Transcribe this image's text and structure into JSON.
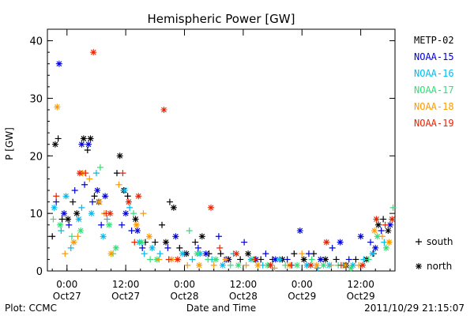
{
  "chart_data": {
    "type": "scatter",
    "title": "Hemispheric Power [GW]",
    "ylabel": "P [GW]",
    "xlabel": "Date and Time",
    "ylim": [
      0,
      42
    ],
    "yticks": [
      0,
      10,
      20,
      30,
      40
    ],
    "xlim_hours": [
      -4,
      67
    ],
    "xticks": [
      {
        "hour": 0,
        "line1": "0:00",
        "line2": "Oct27"
      },
      {
        "hour": 12,
        "line1": "12:00",
        "line2": "Oct27"
      },
      {
        "hour": 24,
        "line1": "0:00",
        "line2": "Oct28"
      },
      {
        "hour": 36,
        "line1": "12:00",
        "line2": "Oct28"
      },
      {
        "hour": 48,
        "line1": "0:00",
        "line2": "Oct29"
      },
      {
        "hour": 60,
        "line1": "12:00",
        "line2": "Oct29"
      }
    ],
    "series": [
      {
        "name": "METP-02",
        "color": "#000000"
      },
      {
        "name": "NOAA-15",
        "color": "#0000dd"
      },
      {
        "name": "NOAA-16",
        "color": "#00bbee"
      },
      {
        "name": "NOAA-17",
        "color": "#33dd77"
      },
      {
        "name": "NOAA-18",
        "color": "#ff9900"
      },
      {
        "name": "NOAA-19",
        "color": "#ee2200"
      }
    ],
    "marker_legend": [
      {
        "symbol": "plus",
        "label": "south"
      },
      {
        "symbol": "star",
        "label": "north"
      }
    ],
    "points": [
      {
        "s": 0,
        "m": "plus",
        "x": -3.0,
        "y": 6
      },
      {
        "s": 0,
        "m": "star",
        "x": -2.4,
        "y": 22
      },
      {
        "s": 0,
        "m": "plus",
        "x": -1.8,
        "y": 23
      },
      {
        "s": 0,
        "m": "plus",
        "x": -1.0,
        "y": 9
      },
      {
        "s": 0,
        "m": "star",
        "x": 0.2,
        "y": 9
      },
      {
        "s": 0,
        "m": "plus",
        "x": 1.2,
        "y": 12
      },
      {
        "s": 0,
        "m": "star",
        "x": 2.0,
        "y": 10
      },
      {
        "s": 0,
        "m": "star",
        "x": 3.4,
        "y": 23
      },
      {
        "s": 0,
        "m": "plus",
        "x": 4.2,
        "y": 21
      },
      {
        "s": 0,
        "m": "star",
        "x": 4.8,
        "y": 23
      },
      {
        "s": 0,
        "m": "plus",
        "x": 5.6,
        "y": 13
      },
      {
        "s": 0,
        "m": "star",
        "x": 6.5,
        "y": 12
      },
      {
        "s": 0,
        "m": "star",
        "x": 10.8,
        "y": 20
      },
      {
        "s": 0,
        "m": "plus",
        "x": 10.2,
        "y": 17
      },
      {
        "s": 0,
        "m": "star",
        "x": 11.6,
        "y": 14
      },
      {
        "s": 0,
        "m": "plus",
        "x": 12.4,
        "y": 13
      },
      {
        "s": 0,
        "m": "star",
        "x": 14.0,
        "y": 9
      },
      {
        "s": 0,
        "m": "plus",
        "x": 16.0,
        "y": 5
      },
      {
        "s": 0,
        "m": "plus",
        "x": 18.0,
        "y": 5
      },
      {
        "s": 0,
        "m": "plus",
        "x": 19.4,
        "y": 8
      },
      {
        "s": 0,
        "m": "star",
        "x": 20.2,
        "y": 5
      },
      {
        "s": 0,
        "m": "plus",
        "x": 21.0,
        "y": 12
      },
      {
        "s": 0,
        "m": "star",
        "x": 21.8,
        "y": 11
      },
      {
        "s": 0,
        "m": "plus",
        "x": 23.0,
        "y": 4
      },
      {
        "s": 0,
        "m": "star",
        "x": 24.4,
        "y": 3
      },
      {
        "s": 0,
        "m": "plus",
        "x": 26.2,
        "y": 5
      },
      {
        "s": 0,
        "m": "star",
        "x": 27.6,
        "y": 6
      },
      {
        "s": 0,
        "m": "plus",
        "x": 29.0,
        "y": 3
      },
      {
        "s": 0,
        "m": "plus",
        "x": 31.4,
        "y": 3
      },
      {
        "s": 0,
        "m": "star",
        "x": 33.0,
        "y": 2
      },
      {
        "s": 0,
        "m": "plus",
        "x": 35.4,
        "y": 2
      },
      {
        "s": 0,
        "m": "star",
        "x": 37.0,
        "y": 3
      },
      {
        "s": 0,
        "m": "plus",
        "x": 39.6,
        "y": 2
      },
      {
        "s": 0,
        "m": "plus",
        "x": 42.0,
        "y": 2
      },
      {
        "s": 0,
        "m": "star",
        "x": 44.0,
        "y": 2
      },
      {
        "s": 0,
        "m": "plus",
        "x": 46.4,
        "y": 3
      },
      {
        "s": 0,
        "m": "star",
        "x": 48.4,
        "y": 2
      },
      {
        "s": 0,
        "m": "plus",
        "x": 50.4,
        "y": 3
      },
      {
        "s": 0,
        "m": "star",
        "x": 52.8,
        "y": 2
      },
      {
        "s": 0,
        "m": "plus",
        "x": 55.0,
        "y": 2
      },
      {
        "s": 0,
        "m": "star",
        "x": 57.0,
        "y": 1
      },
      {
        "s": 0,
        "m": "plus",
        "x": 59.0,
        "y": 2
      },
      {
        "s": 0,
        "m": "star",
        "x": 61.2,
        "y": 2
      },
      {
        "s": 0,
        "m": "plus",
        "x": 62.6,
        "y": 3
      },
      {
        "s": 0,
        "m": "star",
        "x": 63.6,
        "y": 8
      },
      {
        "s": 0,
        "m": "plus",
        "x": 64.6,
        "y": 9
      },
      {
        "s": 0,
        "m": "star",
        "x": 65.6,
        "y": 7
      },
      {
        "s": 1,
        "m": "star",
        "x": -1.6,
        "y": 36
      },
      {
        "s": 1,
        "m": "plus",
        "x": -2.2,
        "y": 12
      },
      {
        "s": 1,
        "m": "star",
        "x": -0.6,
        "y": 10
      },
      {
        "s": 1,
        "m": "plus",
        "x": 0.4,
        "y": 8
      },
      {
        "s": 1,
        "m": "plus",
        "x": 1.6,
        "y": 14
      },
      {
        "s": 1,
        "m": "star",
        "x": 3.0,
        "y": 22
      },
      {
        "s": 1,
        "m": "plus",
        "x": 3.6,
        "y": 15
      },
      {
        "s": 1,
        "m": "star",
        "x": 4.4,
        "y": 22
      },
      {
        "s": 1,
        "m": "plus",
        "x": 5.2,
        "y": 12
      },
      {
        "s": 1,
        "m": "star",
        "x": 6.2,
        "y": 14
      },
      {
        "s": 1,
        "m": "plus",
        "x": 7.0,
        "y": 8
      },
      {
        "s": 1,
        "m": "star",
        "x": 7.8,
        "y": 13
      },
      {
        "s": 1,
        "m": "plus",
        "x": 11.2,
        "y": 8
      },
      {
        "s": 1,
        "m": "star",
        "x": 12.0,
        "y": 10
      },
      {
        "s": 1,
        "m": "plus",
        "x": 13.2,
        "y": 7
      },
      {
        "s": 1,
        "m": "star",
        "x": 14.4,
        "y": 7
      },
      {
        "s": 1,
        "m": "plus",
        "x": 15.4,
        "y": 4
      },
      {
        "s": 1,
        "m": "plus",
        "x": 20.6,
        "y": 4
      },
      {
        "s": 1,
        "m": "star",
        "x": 22.2,
        "y": 6
      },
      {
        "s": 1,
        "m": "plus",
        "x": 24.0,
        "y": 3
      },
      {
        "s": 1,
        "m": "plus",
        "x": 26.8,
        "y": 4
      },
      {
        "s": 1,
        "m": "star",
        "x": 28.4,
        "y": 3
      },
      {
        "s": 1,
        "m": "plus",
        "x": 31.0,
        "y": 6
      },
      {
        "s": 1,
        "m": "star",
        "x": 32.6,
        "y": 2
      },
      {
        "s": 1,
        "m": "plus",
        "x": 36.2,
        "y": 5
      },
      {
        "s": 1,
        "m": "star",
        "x": 38.6,
        "y": 2
      },
      {
        "s": 1,
        "m": "plus",
        "x": 40.6,
        "y": 3
      },
      {
        "s": 1,
        "m": "star",
        "x": 42.6,
        "y": 2
      },
      {
        "s": 1,
        "m": "plus",
        "x": 45.0,
        "y": 2
      },
      {
        "s": 1,
        "m": "star",
        "x": 47.6,
        "y": 7
      },
      {
        "s": 1,
        "m": "plus",
        "x": 49.4,
        "y": 3
      },
      {
        "s": 1,
        "m": "star",
        "x": 51.8,
        "y": 2
      },
      {
        "s": 1,
        "m": "plus",
        "x": 54.2,
        "y": 4
      },
      {
        "s": 1,
        "m": "star",
        "x": 55.8,
        "y": 5
      },
      {
        "s": 1,
        "m": "plus",
        "x": 57.6,
        "y": 2
      },
      {
        "s": 1,
        "m": "star",
        "x": 60.0,
        "y": 6
      },
      {
        "s": 1,
        "m": "plus",
        "x": 62.0,
        "y": 5
      },
      {
        "s": 1,
        "m": "star",
        "x": 63.0,
        "y": 4
      },
      {
        "s": 1,
        "m": "plus",
        "x": 64.2,
        "y": 7
      },
      {
        "s": 1,
        "m": "star",
        "x": 66.0,
        "y": 8
      },
      {
        "s": 2,
        "m": "star",
        "x": -2.6,
        "y": 11
      },
      {
        "s": 2,
        "m": "plus",
        "x": -1.2,
        "y": 7
      },
      {
        "s": 2,
        "m": "star",
        "x": -0.2,
        "y": 13
      },
      {
        "s": 2,
        "m": "plus",
        "x": 0.8,
        "y": 4
      },
      {
        "s": 2,
        "m": "star",
        "x": 2.4,
        "y": 9
      },
      {
        "s": 2,
        "m": "plus",
        "x": 3.0,
        "y": 11
      },
      {
        "s": 2,
        "m": "star",
        "x": 5.0,
        "y": 10
      },
      {
        "s": 2,
        "m": "plus",
        "x": 6.0,
        "y": 17
      },
      {
        "s": 2,
        "m": "star",
        "x": 7.4,
        "y": 6
      },
      {
        "s": 2,
        "m": "plus",
        "x": 8.2,
        "y": 9
      },
      {
        "s": 2,
        "m": "star",
        "x": 11.8,
        "y": 14
      },
      {
        "s": 2,
        "m": "plus",
        "x": 12.8,
        "y": 11
      },
      {
        "s": 2,
        "m": "star",
        "x": 14.8,
        "y": 5
      },
      {
        "s": 2,
        "m": "plus",
        "x": 15.8,
        "y": 3
      },
      {
        "s": 2,
        "m": "star",
        "x": 17.4,
        "y": 4
      },
      {
        "s": 2,
        "m": "plus",
        "x": 19.0,
        "y": 3
      },
      {
        "s": 2,
        "m": "star",
        "x": 23.6,
        "y": 3
      },
      {
        "s": 2,
        "m": "plus",
        "x": 25.6,
        "y": 2
      },
      {
        "s": 2,
        "m": "star",
        "x": 27.2,
        "y": 3
      },
      {
        "s": 2,
        "m": "plus",
        "x": 29.6,
        "y": 2
      },
      {
        "s": 2,
        "m": "star",
        "x": 31.8,
        "y": 1
      },
      {
        "s": 2,
        "m": "plus",
        "x": 34.0,
        "y": 3
      },
      {
        "s": 2,
        "m": "star",
        "x": 37.6,
        "y": 2
      },
      {
        "s": 2,
        "m": "plus",
        "x": 40.0,
        "y": 1
      },
      {
        "s": 2,
        "m": "star",
        "x": 43.4,
        "y": 2
      },
      {
        "s": 2,
        "m": "plus",
        "x": 46.0,
        "y": 1
      },
      {
        "s": 2,
        "m": "star",
        "x": 49.0,
        "y": 1
      },
      {
        "s": 2,
        "m": "plus",
        "x": 51.2,
        "y": 0.5
      },
      {
        "s": 2,
        "m": "star",
        "x": 53.6,
        "y": 1
      },
      {
        "s": 2,
        "m": "plus",
        "x": 56.4,
        "y": 1
      },
      {
        "s": 2,
        "m": "star",
        "x": 58.4,
        "y": 1
      },
      {
        "s": 2,
        "m": "plus",
        "x": 60.6,
        "y": 2
      },
      {
        "s": 2,
        "m": "star",
        "x": 62.4,
        "y": 3
      },
      {
        "s": 2,
        "m": "plus",
        "x": 64.8,
        "y": 5
      },
      {
        "s": 3,
        "m": "plus",
        "x": -2.8,
        "y": 9
      },
      {
        "s": 3,
        "m": "star",
        "x": -1.4,
        "y": 8
      },
      {
        "s": 3,
        "m": "plus",
        "x": 1.0,
        "y": 6
      },
      {
        "s": 3,
        "m": "star",
        "x": 2.8,
        "y": 7
      },
      {
        "s": 3,
        "m": "plus",
        "x": 6.8,
        "y": 18
      },
      {
        "s": 3,
        "m": "star",
        "x": 8.6,
        "y": 8
      },
      {
        "s": 3,
        "m": "plus",
        "x": 9.4,
        "y": 3
      },
      {
        "s": 3,
        "m": "star",
        "x": 10.0,
        "y": 4
      },
      {
        "s": 3,
        "m": "plus",
        "x": 13.6,
        "y": 10
      },
      {
        "s": 3,
        "m": "star",
        "x": 15.2,
        "y": 5
      },
      {
        "s": 3,
        "m": "plus",
        "x": 17.0,
        "y": 2
      },
      {
        "s": 3,
        "m": "star",
        "x": 18.4,
        "y": 2
      },
      {
        "s": 3,
        "m": "plus",
        "x": 25.0,
        "y": 7
      },
      {
        "s": 3,
        "m": "star",
        "x": 26.6,
        "y": 3
      },
      {
        "s": 3,
        "m": "plus",
        "x": 28.8,
        "y": 2
      },
      {
        "s": 3,
        "m": "star",
        "x": 30.4,
        "y": 2
      },
      {
        "s": 3,
        "m": "plus",
        "x": 33.4,
        "y": 1
      },
      {
        "s": 3,
        "m": "star",
        "x": 35.0,
        "y": 1
      },
      {
        "s": 3,
        "m": "plus",
        "x": 38.0,
        "y": 2
      },
      {
        "s": 3,
        "m": "star",
        "x": 41.0,
        "y": 1
      },
      {
        "s": 3,
        "m": "plus",
        "x": 44.6,
        "y": 1
      },
      {
        "s": 3,
        "m": "star",
        "x": 47.0,
        "y": 1
      },
      {
        "s": 3,
        "m": "plus",
        "x": 50.0,
        "y": 2
      },
      {
        "s": 3,
        "m": "star",
        "x": 52.4,
        "y": 1
      },
      {
        "s": 3,
        "m": "plus",
        "x": 55.4,
        "y": 1
      },
      {
        "s": 3,
        "m": "star",
        "x": 58.0,
        "y": 0.5
      },
      {
        "s": 3,
        "m": "plus",
        "x": 61.6,
        "y": 2
      },
      {
        "s": 3,
        "m": "star",
        "x": 63.4,
        "y": 6
      },
      {
        "s": 3,
        "m": "plus",
        "x": 66.6,
        "y": 11
      },
      {
        "s": 3,
        "m": "star",
        "x": 65.2,
        "y": 4
      },
      {
        "s": 4,
        "m": "star",
        "x": -2.0,
        "y": 28.5
      },
      {
        "s": 4,
        "m": "plus",
        "x": -0.4,
        "y": 3
      },
      {
        "s": 4,
        "m": "star",
        "x": 1.4,
        "y": 5
      },
      {
        "s": 4,
        "m": "plus",
        "x": 2.2,
        "y": 6
      },
      {
        "s": 4,
        "m": "star",
        "x": 3.2,
        "y": 17
      },
      {
        "s": 4,
        "m": "plus",
        "x": 4.6,
        "y": 16
      },
      {
        "s": 4,
        "m": "star",
        "x": 6.6,
        "y": 12
      },
      {
        "s": 4,
        "m": "plus",
        "x": 7.6,
        "y": 10
      },
      {
        "s": 4,
        "m": "star",
        "x": 9.0,
        "y": 3
      },
      {
        "s": 4,
        "m": "plus",
        "x": 10.6,
        "y": 15
      },
      {
        "s": 4,
        "m": "star",
        "x": 14.2,
        "y": 8
      },
      {
        "s": 4,
        "m": "plus",
        "x": 15.6,
        "y": 10
      },
      {
        "s": 4,
        "m": "star",
        "x": 16.8,
        "y": 6
      },
      {
        "s": 4,
        "m": "plus",
        "x": 18.8,
        "y": 2
      },
      {
        "s": 4,
        "m": "star",
        "x": 21.4,
        "y": 2
      },
      {
        "s": 4,
        "m": "plus",
        "x": 24.6,
        "y": 1
      },
      {
        "s": 4,
        "m": "star",
        "x": 27.0,
        "y": 1
      },
      {
        "s": 4,
        "m": "plus",
        "x": 30.0,
        "y": 1
      },
      {
        "s": 4,
        "m": "star",
        "x": 32.4,
        "y": 2
      },
      {
        "s": 4,
        "m": "plus",
        "x": 36.6,
        "y": 1
      },
      {
        "s": 4,
        "m": "star",
        "x": 39.0,
        "y": 1
      },
      {
        "s": 4,
        "m": "plus",
        "x": 42.4,
        "y": 0.5
      },
      {
        "s": 4,
        "m": "star",
        "x": 45.4,
        "y": 1
      },
      {
        "s": 4,
        "m": "plus",
        "x": 48.0,
        "y": 3
      },
      {
        "s": 4,
        "m": "star",
        "x": 51.0,
        "y": 1
      },
      {
        "s": 4,
        "m": "plus",
        "x": 54.0,
        "y": 1
      },
      {
        "s": 4,
        "m": "star",
        "x": 56.8,
        "y": 1
      },
      {
        "s": 4,
        "m": "plus",
        "x": 59.6,
        "y": 1
      },
      {
        "s": 4,
        "m": "star",
        "x": 62.8,
        "y": 7
      },
      {
        "s": 4,
        "m": "plus",
        "x": 64.4,
        "y": 6
      },
      {
        "s": 4,
        "m": "star",
        "x": 65.8,
        "y": 5
      },
      {
        "s": 5,
        "m": "plus",
        "x": -2.2,
        "y": 13
      },
      {
        "s": 5,
        "m": "star",
        "x": 2.6,
        "y": 17
      },
      {
        "s": 5,
        "m": "plus",
        "x": 3.8,
        "y": 17
      },
      {
        "s": 5,
        "m": "star",
        "x": 5.4,
        "y": 38
      },
      {
        "s": 5,
        "m": "plus",
        "x": 8.0,
        "y": 10
      },
      {
        "s": 5,
        "m": "star",
        "x": 8.8,
        "y": 10
      },
      {
        "s": 5,
        "m": "plus",
        "x": 11.4,
        "y": 17
      },
      {
        "s": 5,
        "m": "star",
        "x": 12.6,
        "y": 12
      },
      {
        "s": 5,
        "m": "plus",
        "x": 13.8,
        "y": 5
      },
      {
        "s": 5,
        "m": "star",
        "x": 14.6,
        "y": 13
      },
      {
        "s": 5,
        "m": "star",
        "x": 19.8,
        "y": 28
      },
      {
        "s": 5,
        "m": "plus",
        "x": 20.8,
        "y": 2
      },
      {
        "s": 5,
        "m": "star",
        "x": 22.6,
        "y": 2
      },
      {
        "s": 5,
        "m": "star",
        "x": 29.4,
        "y": 11
      },
      {
        "s": 5,
        "m": "plus",
        "x": 31.2,
        "y": 4
      },
      {
        "s": 5,
        "m": "star",
        "x": 34.6,
        "y": 3
      },
      {
        "s": 5,
        "m": "plus",
        "x": 38.4,
        "y": 2
      },
      {
        "s": 5,
        "m": "star",
        "x": 41.6,
        "y": 1
      },
      {
        "s": 5,
        "m": "plus",
        "x": 45.8,
        "y": 1
      },
      {
        "s": 5,
        "m": "star",
        "x": 49.8,
        "y": 1
      },
      {
        "s": 5,
        "m": "star",
        "x": 53.0,
        "y": 5
      },
      {
        "s": 5,
        "m": "plus",
        "x": 56.0,
        "y": 1
      },
      {
        "s": 5,
        "m": "star",
        "x": 60.4,
        "y": 1
      },
      {
        "s": 5,
        "m": "star",
        "x": 63.2,
        "y": 9
      },
      {
        "s": 5,
        "m": "plus",
        "x": 65.0,
        "y": 8
      },
      {
        "s": 5,
        "m": "star",
        "x": 66.4,
        "y": 9
      }
    ]
  },
  "footer": {
    "left": "Plot: CCMC",
    "right": "2011/10/29 21:15:07"
  }
}
